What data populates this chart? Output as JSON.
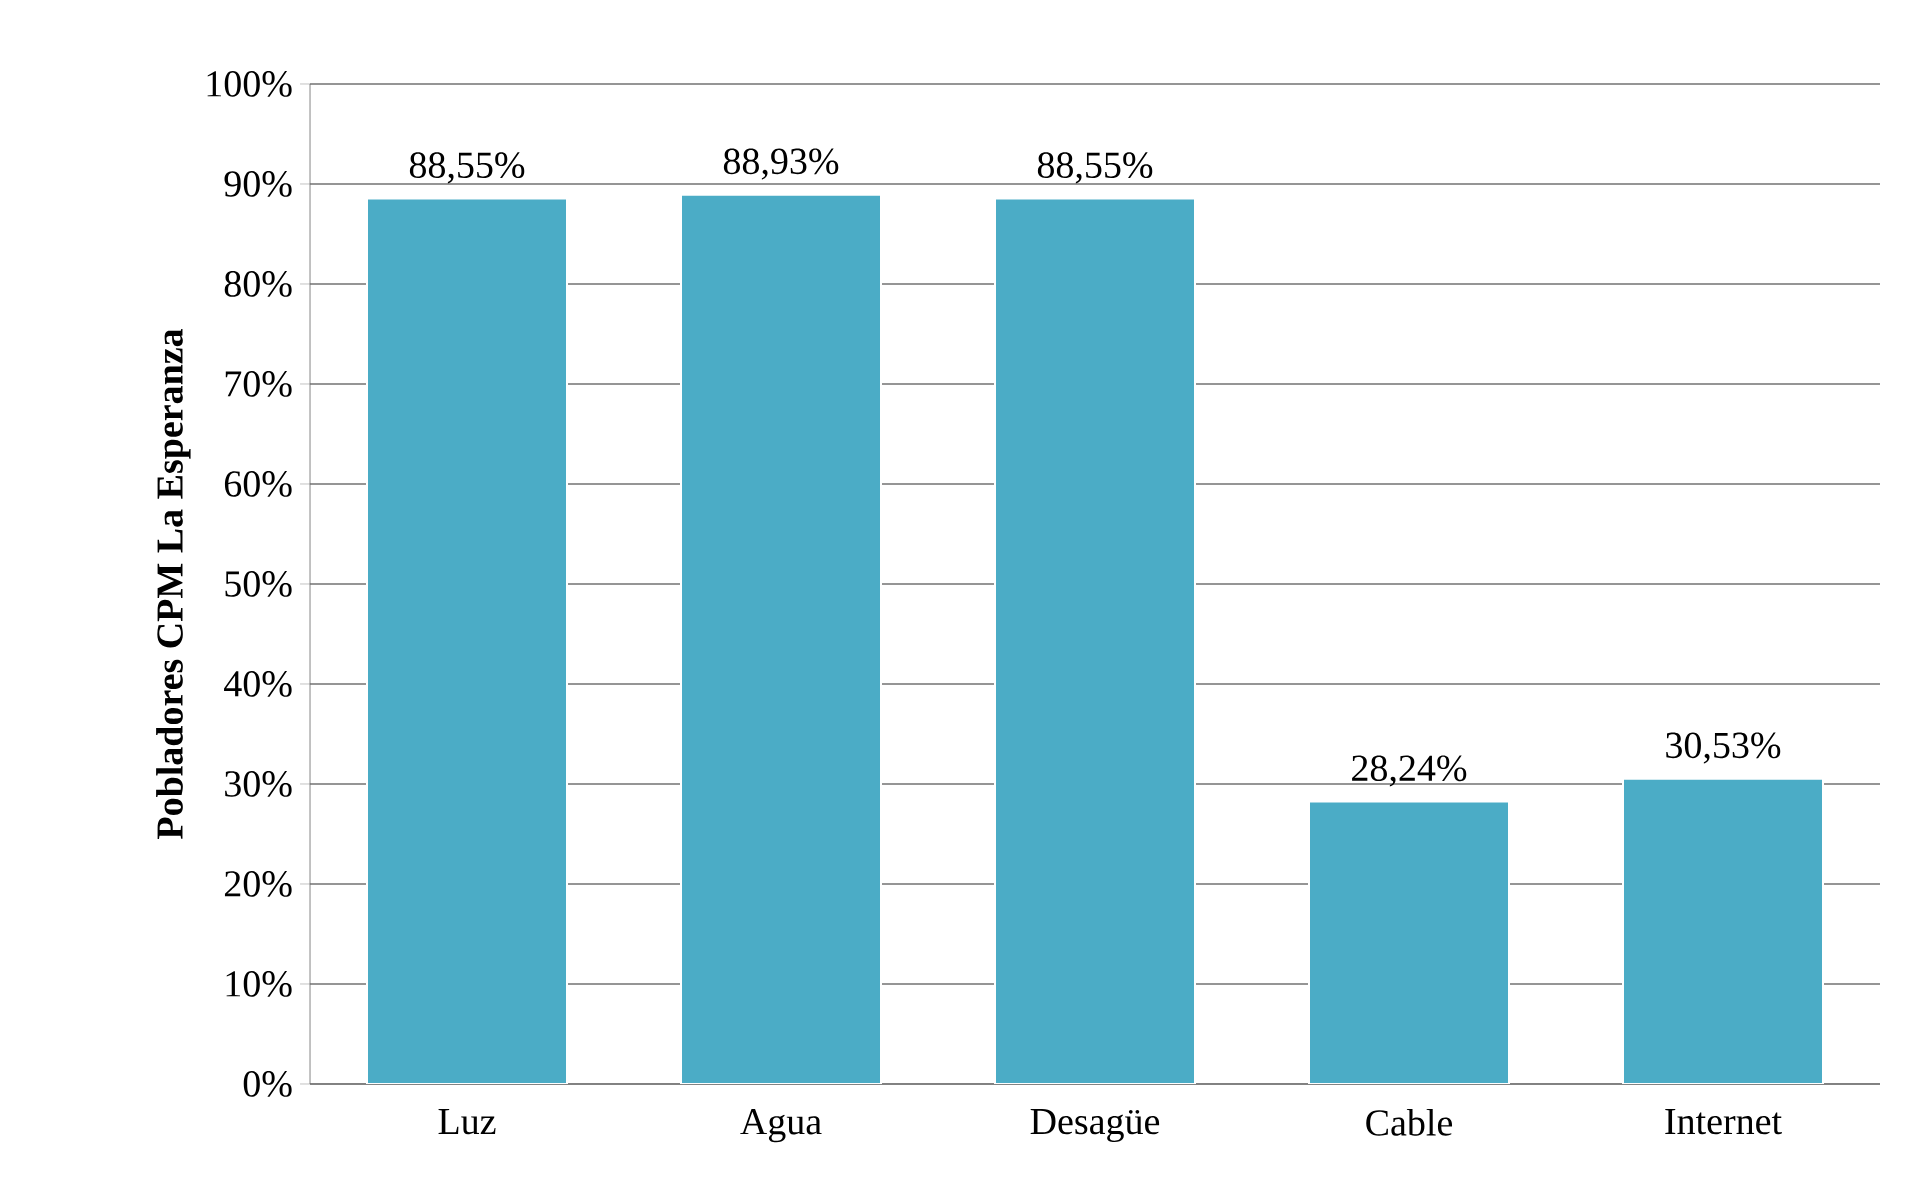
{
  "chart_data": {
    "type": "bar",
    "ylabel": "Pobladores CPM La Esperanza",
    "categories": [
      "Luz",
      "Agua",
      "Desagüe",
      "Cable",
      "Internet"
    ],
    "values": [
      88.55,
      88.93,
      88.55,
      28.24,
      30.53
    ],
    "value_labels": [
      "88,55%",
      "88,93%",
      "88,55%",
      "28,24%",
      "30,53%"
    ],
    "color": "#4bacc6",
    "ylim": [
      0,
      100
    ],
    "yticks": [
      {
        "value": 0,
        "label": "0%"
      },
      {
        "value": 10,
        "label": "10%"
      },
      {
        "value": 20,
        "label": "20%"
      },
      {
        "value": 30,
        "label": "30%"
      },
      {
        "value": 40,
        "label": "40%"
      },
      {
        "value": 50,
        "label": "50%"
      },
      {
        "value": 60,
        "label": "60%"
      },
      {
        "value": 70,
        "label": "70%"
      },
      {
        "value": 80,
        "label": "80%"
      },
      {
        "value": 90,
        "label": "90%"
      },
      {
        "value": 100,
        "label": "100%"
      }
    ],
    "grid": "y"
  }
}
